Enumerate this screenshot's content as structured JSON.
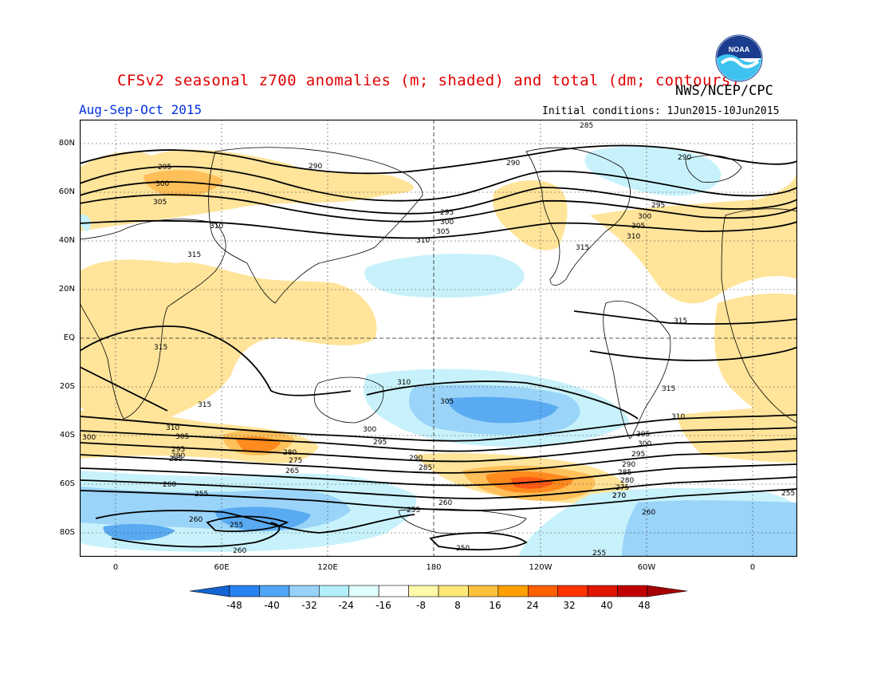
{
  "title": "CFSv2 seasonal z700 anomalies (m; shaded) and total (dm; contours)",
  "agency": "NWS/NCEP/CPC",
  "season": "Aug-Sep-Oct 2015",
  "initial_conditions": "Initial conditions: 1Jun2015-10Jun2015",
  "logo_text": "NOAA",
  "lat_labels": [
    "80N",
    "60N",
    "40N",
    "20N",
    "EQ",
    "20S",
    "40S",
    "60S",
    "80S"
  ],
  "lon_labels": [
    "0",
    "60E",
    "120E",
    "180",
    "120W",
    "60W",
    "0"
  ],
  "colorbar": {
    "ticks": [
      "-48",
      "-40",
      "-32",
      "-24",
      "-16",
      "-8",
      "8",
      "16",
      "24",
      "32",
      "40",
      "48"
    ],
    "colors": [
      "#1464d2",
      "#2882f0",
      "#50a5f5",
      "#96d2fa",
      "#b4f0fa",
      "#e1ffff",
      "#ffffff",
      "#fffaaa",
      "#ffe878",
      "#ffc03c",
      "#ffa000",
      "#ff6000",
      "#ff3200",
      "#e11400",
      "#c00000",
      "#a50000"
    ]
  },
  "contour_labels": [
    {
      "text": "285"
    },
    {
      "text": "290"
    },
    {
      "text": "290"
    },
    {
      "text": "290"
    },
    {
      "text": "295"
    },
    {
      "text": "300"
    },
    {
      "text": "305"
    },
    {
      "text": "310"
    },
    {
      "text": "315"
    },
    {
      "text": "295"
    },
    {
      "text": "300"
    },
    {
      "text": "305"
    },
    {
      "text": "310"
    },
    {
      "text": "295"
    },
    {
      "text": "300"
    },
    {
      "text": "305"
    },
    {
      "text": "310"
    },
    {
      "text": "315"
    },
    {
      "text": "315"
    },
    {
      "text": "315"
    },
    {
      "text": "315"
    },
    {
      "text": "310"
    },
    {
      "text": "305"
    },
    {
      "text": "300"
    },
    {
      "text": "295"
    },
    {
      "text": "290"
    },
    {
      "text": "285"
    },
    {
      "text": "310"
    },
    {
      "text": "315"
    },
    {
      "text": "310"
    },
    {
      "text": "305"
    },
    {
      "text": "300"
    },
    {
      "text": "295"
    },
    {
      "text": "290"
    },
    {
      "text": "285"
    },
    {
      "text": "280"
    },
    {
      "text": "275"
    },
    {
      "text": "270"
    },
    {
      "text": "265"
    },
    {
      "text": "260"
    },
    {
      "text": "260"
    },
    {
      "text": "255"
    },
    {
      "text": "260"
    },
    {
      "text": "255"
    },
    {
      "text": "260"
    },
    {
      "text": "255"
    },
    {
      "text": "260"
    },
    {
      "text": "250"
    },
    {
      "text": "255"
    },
    {
      "text": "255"
    },
    {
      "text": "300"
    },
    {
      "text": "305"
    },
    {
      "text": "295"
    },
    {
      "text": "290"
    },
    {
      "text": "285"
    },
    {
      "text": "280"
    },
    {
      "text": "275"
    },
    {
      "text": "270"
    }
  ]
}
